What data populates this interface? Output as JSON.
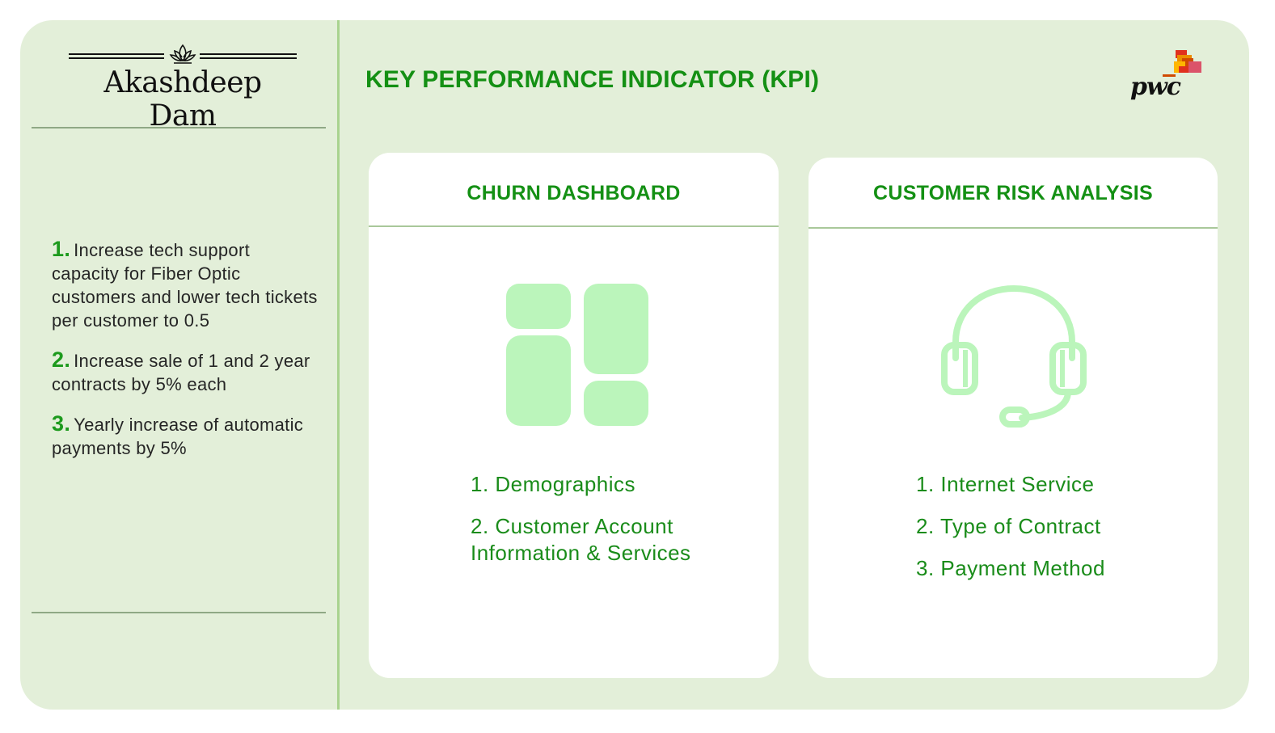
{
  "brand": {
    "name": "Akashdeep Dam",
    "icon": "lotus-icon"
  },
  "header": {
    "title": "KEY PERFORMANCE INDICATOR (KPI)",
    "logo_text": "pwc"
  },
  "goals": [
    {
      "number": "1.",
      "text": "Increase tech support capacity for Fiber Optic customers and lower tech tickets per customer to 0.5"
    },
    {
      "number": "2.",
      "text": "Increase sale of 1 and 2 year contracts by 5% each"
    },
    {
      "number": "3.",
      "text": "Yearly increase of automatic payments by 5%"
    }
  ],
  "cards": [
    {
      "title": "CHURN DASHBOARD",
      "icon": "dashboard-icon",
      "items": [
        "1. Demographics",
        "2. Customer Account Information & Services"
      ]
    },
    {
      "title": "CUSTOMER RISK ANALYSIS",
      "icon": "headset-icon",
      "items": [
        "1. Internet Service",
        "2. Type of Contract",
        "3. Payment Method"
      ]
    }
  ],
  "colors": {
    "background": "#e3efd9",
    "accent_green": "#149014",
    "icon_green": "#bbf5bb",
    "divider": "#a9d38f"
  }
}
